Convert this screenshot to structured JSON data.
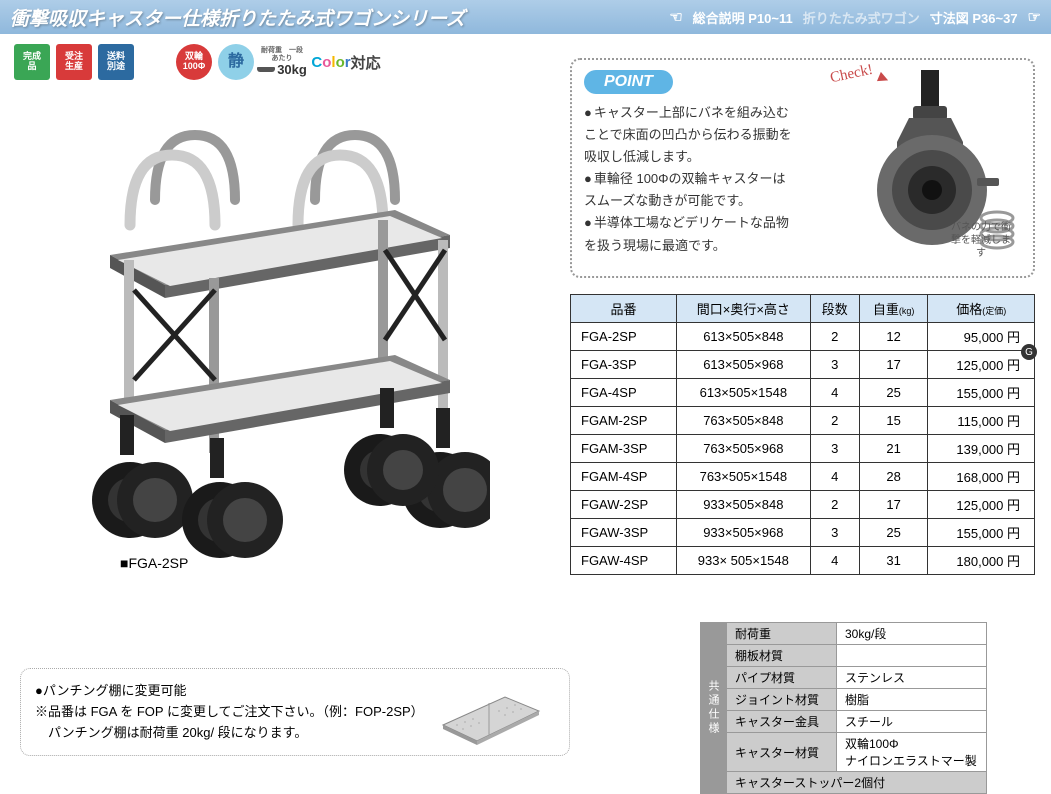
{
  "header": {
    "title": "衝撃吸収キャスター仕様折りたたみ式ワゴンシリーズ",
    "link1_label": "総合説明 P10~11",
    "link2_label": "折りたたみ式ワゴン",
    "link3_label": "寸法図 P36~37"
  },
  "badges": {
    "b1": {
      "line1": "完成",
      "line2": "品",
      "bg": "#3aa655"
    },
    "b2": {
      "line1": "受注",
      "line2": "生産",
      "bg": "#d83a3a"
    },
    "b3": {
      "line1": "送料",
      "line2": "別途",
      "bg": "#2c6aa0"
    },
    "b4": {
      "line1": "双輪",
      "line2": "100Φ",
      "bg": "#d83a3a"
    },
    "b5": {
      "text": "静",
      "bg": "#8fd0e8"
    },
    "b6": {
      "top": "耐荷重　一段あたり",
      "value": "30kg"
    },
    "b7": {
      "text_taiou": "対応"
    }
  },
  "product": {
    "label": "■FGA-2SP"
  },
  "point": {
    "pill": "POINT",
    "check": "Check!",
    "items": [
      "キャスター上部にバネを組み込むことで床面の凹凸から伝わる振動を吸収し低減します。",
      "車輪径 100Φの双輪キャスターはスムーズな動きが可能です。",
      "半導体工場などデリケートな品物を扱う現場に最適です。"
    ],
    "spring_note": "バネの力で衝撃を軽減します"
  },
  "circle_g": "G",
  "spec_table": {
    "headers": {
      "col1": "品番",
      "col2": "間口×奥行×高さ",
      "col3": "段数",
      "col4": "自重",
      "col4_unit": "(kg)",
      "col5": "価格",
      "col5_unit": "(定価)"
    },
    "rows": [
      {
        "model": "FGA-2SP",
        "dims": "613×505×848",
        "tiers": "2",
        "weight": "12",
        "price": "95,000 円"
      },
      {
        "model": "FGA-3SP",
        "dims": "613×505×968",
        "tiers": "3",
        "weight": "17",
        "price": "125,000 円"
      },
      {
        "model": "FGA-4SP",
        "dims": "613×505×1548",
        "tiers": "4",
        "weight": "25",
        "price": "155,000 円"
      },
      {
        "model": "FGAM-2SP",
        "dims": "763×505×848",
        "tiers": "2",
        "weight": "15",
        "price": "115,000 円"
      },
      {
        "model": "FGAM-3SP",
        "dims": "763×505×968",
        "tiers": "3",
        "weight": "21",
        "price": "139,000 円"
      },
      {
        "model": "FGAM-4SP",
        "dims": "763×505×1548",
        "tiers": "4",
        "weight": "28",
        "price": "168,000 円"
      },
      {
        "model": "FGAW-2SP",
        "dims": "933×505×848",
        "tiers": "2",
        "weight": "17",
        "price": "125,000 円"
      },
      {
        "model": "FGAW-3SP",
        "dims": "933×505×968",
        "tiers": "3",
        "weight": "25",
        "price": "155,000 円"
      },
      {
        "model": "FGAW-4SP",
        "dims": "933× 505×1548",
        "tiers": "4",
        "weight": "31",
        "price": "180,000 円"
      }
    ]
  },
  "common_spec": {
    "label": "共通仕様",
    "rows": [
      {
        "k": "耐荷重",
        "v": "30kg/段"
      },
      {
        "k": "棚板材質",
        "v": ""
      },
      {
        "k": "パイプ材質",
        "v": "ステンレス"
      },
      {
        "k": "ジョイント材質",
        "v": "樹脂"
      },
      {
        "k": "キャスター金具",
        "v": "スチール"
      },
      {
        "k": "キャスター材質",
        "v": "双輪100Φ\nナイロンエラストマー製"
      }
    ],
    "footer": "キャスターストッパー2個付"
  },
  "punch": {
    "line1": "●パンチング棚に変更可能",
    "line2": "※品番は FGA を FOP に変更してご注文下さい。（例：FOP-2SP）",
    "line3": "　パンチング棚は耐荷重 20kg/ 段になります。"
  },
  "colors": {
    "header_grad_top": "#aecde8",
    "header_grad_bottom": "#8fb8dc",
    "table_header_bg": "#d5e6f5",
    "point_pill_bg": "#5fb5e5",
    "caster_body": "#5a5a5a",
    "caster_tire": "#6a6a6a"
  }
}
